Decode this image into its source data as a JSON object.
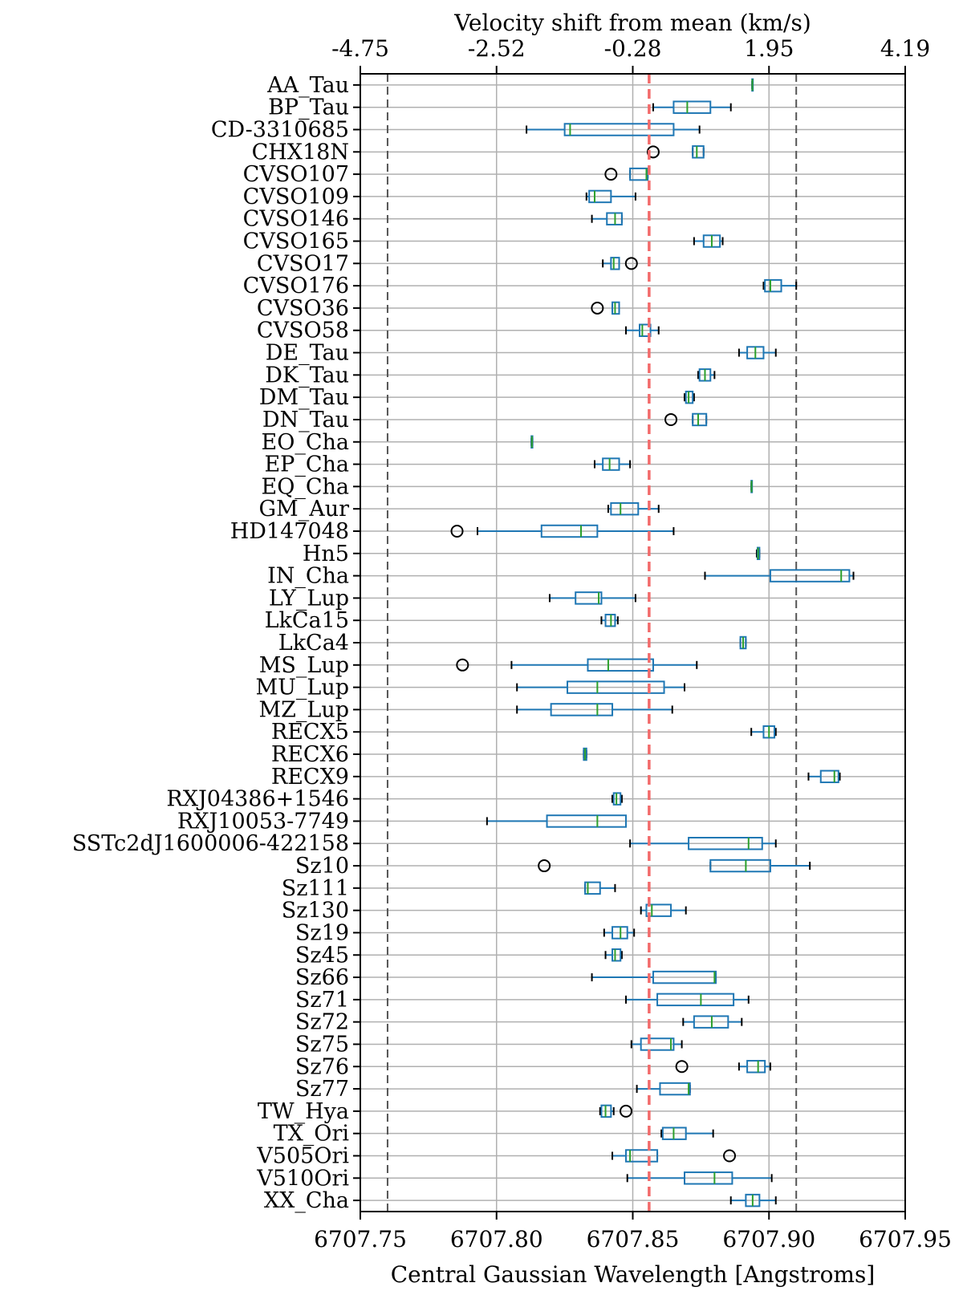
{
  "chart_data": {
    "type": "box",
    "orientation": "horizontal",
    "xlabel": "Central Gaussian Wavelength [Angstroms]",
    "top_xlabel": "Velocity shift from mean (km/s)",
    "xlim": [
      6707.75,
      6707.95
    ],
    "x_ticks": [
      "6707.75",
      "6707.80",
      "6707.85",
      "6707.90",
      "6707.95"
    ],
    "x_tick_values": [
      6707.75,
      6707.8,
      6707.85,
      6707.9,
      6707.95
    ],
    "top_ticks": [
      "-4.75",
      "-2.52",
      "-0.28",
      "1.95",
      "4.19"
    ],
    "mean_line": 6707.856,
    "dashed_lines": [
      6707.76,
      6707.91
    ],
    "grid": true,
    "colors": {
      "box": "#1f77b4",
      "median": "#2ca02c",
      "mean_line": "#f26a6a",
      "dashed": "#555555",
      "grid": "#b0b0b0"
    },
    "boxes": [
      {
        "name": "AA_Tau",
        "whislo": 6707.8938,
        "q1": 6707.8938,
        "med": 6707.8939,
        "q3": 6707.894,
        "whishi": 6707.894,
        "fliers": []
      },
      {
        "name": "BP_Tau",
        "whislo": 6707.8575,
        "q1": 6707.865,
        "med": 6707.87,
        "q3": 6707.8785,
        "whishi": 6707.886,
        "fliers": []
      },
      {
        "name": "CD-3310685",
        "whislo": 6707.811,
        "q1": 6707.825,
        "med": 6707.827,
        "q3": 6707.865,
        "whishi": 6707.8745,
        "fliers": []
      },
      {
        "name": "CHX18N",
        "whislo": 6707.872,
        "q1": 6707.872,
        "med": 6707.8735,
        "q3": 6707.876,
        "whishi": 6707.876,
        "fliers": [
          6707.8575
        ]
      },
      {
        "name": "CVSO107",
        "whislo": 6707.849,
        "q1": 6707.849,
        "med": 6707.855,
        "q3": 6707.8555,
        "whishi": 6707.8555,
        "fliers": [
          6707.842
        ]
      },
      {
        "name": "CVSO109",
        "whislo": 6707.833,
        "q1": 6707.834,
        "med": 6707.836,
        "q3": 6707.842,
        "whishi": 6707.851,
        "fliers": []
      },
      {
        "name": "CVSO146",
        "whislo": 6707.835,
        "q1": 6707.8405,
        "med": 6707.8435,
        "q3": 6707.846,
        "whishi": 6707.846,
        "fliers": []
      },
      {
        "name": "CVSO165",
        "whislo": 6707.8725,
        "q1": 6707.876,
        "med": 6707.879,
        "q3": 6707.882,
        "whishi": 6707.883,
        "fliers": []
      },
      {
        "name": "CVSO17",
        "whislo": 6707.839,
        "q1": 6707.842,
        "med": 6707.843,
        "q3": 6707.845,
        "whishi": 6707.845,
        "fliers": [
          6707.8495
        ]
      },
      {
        "name": "CVSO176",
        "whislo": 6707.898,
        "q1": 6707.8985,
        "med": 6707.9005,
        "q3": 6707.9045,
        "whishi": 6707.91,
        "fliers": []
      },
      {
        "name": "CVSO36",
        "whislo": 6707.8425,
        "q1": 6707.8425,
        "med": 6707.8435,
        "q3": 6707.845,
        "whishi": 6707.845,
        "fliers": [
          6707.837
        ]
      },
      {
        "name": "CVSO58",
        "whislo": 6707.8475,
        "q1": 6707.8525,
        "med": 6707.8535,
        "q3": 6707.8565,
        "whishi": 6707.8595,
        "fliers": []
      },
      {
        "name": "DE_Tau",
        "whislo": 6707.889,
        "q1": 6707.892,
        "med": 6707.895,
        "q3": 6707.898,
        "whishi": 6707.9025,
        "fliers": []
      },
      {
        "name": "DK_Tau",
        "whislo": 6707.874,
        "q1": 6707.8745,
        "med": 6707.8765,
        "q3": 6707.8785,
        "whishi": 6707.88,
        "fliers": []
      },
      {
        "name": "DM_Tau",
        "whislo": 6707.869,
        "q1": 6707.8695,
        "med": 6707.8705,
        "q3": 6707.872,
        "whishi": 6707.8725,
        "fliers": []
      },
      {
        "name": "DN_Tau",
        "whislo": 6707.872,
        "q1": 6707.872,
        "med": 6707.874,
        "q3": 6707.877,
        "whishi": 6707.877,
        "fliers": [
          6707.864
        ]
      },
      {
        "name": "EO_Cha",
        "whislo": 6707.8128,
        "q1": 6707.8128,
        "med": 6707.813,
        "q3": 6707.8132,
        "whishi": 6707.8132,
        "fliers": []
      },
      {
        "name": "EP_Cha",
        "whislo": 6707.836,
        "q1": 6707.839,
        "med": 6707.8415,
        "q3": 6707.845,
        "whishi": 6707.849,
        "fliers": []
      },
      {
        "name": "EQ_Cha",
        "whislo": 6707.8935,
        "q1": 6707.8935,
        "med": 6707.8936,
        "q3": 6707.8937,
        "whishi": 6707.8937,
        "fliers": []
      },
      {
        "name": "GM_Aur",
        "whislo": 6707.841,
        "q1": 6707.842,
        "med": 6707.8455,
        "q3": 6707.852,
        "whishi": 6707.8595,
        "fliers": []
      },
      {
        "name": "HD147048",
        "whislo": 6707.793,
        "q1": 6707.8165,
        "med": 6707.831,
        "q3": 6707.837,
        "whishi": 6707.865,
        "fliers": [
          6707.7855
        ]
      },
      {
        "name": "Hn5",
        "whislo": 6707.8955,
        "q1": 6707.8958,
        "med": 6707.896,
        "q3": 6707.8965,
        "whishi": 6707.8965,
        "fliers": []
      },
      {
        "name": "IN_Cha",
        "whislo": 6707.8765,
        "q1": 6707.9005,
        "med": 6707.9265,
        "q3": 6707.9295,
        "whishi": 6707.931,
        "fliers": []
      },
      {
        "name": "LY_Lup",
        "whislo": 6707.8195,
        "q1": 6707.829,
        "med": 6707.8375,
        "q3": 6707.8385,
        "whishi": 6707.851,
        "fliers": []
      },
      {
        "name": "LkCa15",
        "whislo": 6707.8385,
        "q1": 6707.84,
        "med": 6707.842,
        "q3": 6707.8435,
        "whishi": 6707.8445,
        "fliers": []
      },
      {
        "name": "LkCa4",
        "whislo": 6707.8895,
        "q1": 6707.8895,
        "med": 6707.8905,
        "q3": 6707.8915,
        "whishi": 6707.8915,
        "fliers": []
      },
      {
        "name": "MS_Lup",
        "whislo": 6707.8055,
        "q1": 6707.8335,
        "med": 6707.841,
        "q3": 6707.8575,
        "whishi": 6707.8735,
        "fliers": [
          6707.7875
        ]
      },
      {
        "name": "MU_Lup",
        "whislo": 6707.8075,
        "q1": 6707.826,
        "med": 6707.837,
        "q3": 6707.8615,
        "whishi": 6707.869,
        "fliers": []
      },
      {
        "name": "MZ_Lup",
        "whislo": 6707.8075,
        "q1": 6707.82,
        "med": 6707.837,
        "q3": 6707.8425,
        "whishi": 6707.8645,
        "fliers": []
      },
      {
        "name": "RECX5",
        "whislo": 6707.8935,
        "q1": 6707.898,
        "med": 6707.9,
        "q3": 6707.902,
        "whishi": 6707.9025,
        "fliers": []
      },
      {
        "name": "RECX6",
        "whislo": 6707.832,
        "q1": 6707.832,
        "med": 6707.8325,
        "q3": 6707.833,
        "whishi": 6707.833,
        "fliers": []
      },
      {
        "name": "RECX9",
        "whislo": 6707.9145,
        "q1": 6707.919,
        "med": 6707.924,
        "q3": 6707.9255,
        "whishi": 6707.926,
        "fliers": []
      },
      {
        "name": "RXJ04386+1546",
        "whislo": 6707.8425,
        "q1": 6707.843,
        "med": 6707.844,
        "q3": 6707.8455,
        "whishi": 6707.846,
        "fliers": []
      },
      {
        "name": "RXJ10053-7749",
        "whislo": 6707.7965,
        "q1": 6707.8185,
        "med": 6707.837,
        "q3": 6707.8475,
        "whishi": 6707.8475,
        "fliers": []
      },
      {
        "name": "SSTc2dJ1600006-422158",
        "whislo": 6707.849,
        "q1": 6707.8705,
        "med": 6707.8925,
        "q3": 6707.8975,
        "whishi": 6707.9025,
        "fliers": []
      },
      {
        "name": "Sz10",
        "whislo": 6707.8785,
        "q1": 6707.8785,
        "med": 6707.8915,
        "q3": 6707.9005,
        "whishi": 6707.915,
        "fliers": [
          6707.8175
        ]
      },
      {
        "name": "Sz111",
        "whislo": 6707.8325,
        "q1": 6707.8325,
        "med": 6707.8335,
        "q3": 6707.838,
        "whishi": 6707.8435,
        "fliers": []
      },
      {
        "name": "Sz130",
        "whislo": 6707.853,
        "q1": 6707.855,
        "med": 6707.857,
        "q3": 6707.864,
        "whishi": 6707.8695,
        "fliers": []
      },
      {
        "name": "Sz19",
        "whislo": 6707.8395,
        "q1": 6707.8425,
        "med": 6707.8455,
        "q3": 6707.848,
        "whishi": 6707.8505,
        "fliers": []
      },
      {
        "name": "Sz45",
        "whislo": 6707.84,
        "q1": 6707.8425,
        "med": 6707.8435,
        "q3": 6707.8455,
        "whishi": 6707.846,
        "fliers": []
      },
      {
        "name": "Sz66",
        "whislo": 6707.835,
        "q1": 6707.8575,
        "med": 6707.88,
        "q3": 6707.8805,
        "whishi": 6707.8805,
        "fliers": []
      },
      {
        "name": "Sz71",
        "whislo": 6707.8475,
        "q1": 6707.859,
        "med": 6707.875,
        "q3": 6707.887,
        "whishi": 6707.8925,
        "fliers": []
      },
      {
        "name": "Sz72",
        "whislo": 6707.8685,
        "q1": 6707.8725,
        "med": 6707.879,
        "q3": 6707.885,
        "whishi": 6707.89,
        "fliers": []
      },
      {
        "name": "Sz75",
        "whislo": 6707.8495,
        "q1": 6707.853,
        "med": 6707.864,
        "q3": 6707.865,
        "whishi": 6707.868,
        "fliers": []
      },
      {
        "name": "Sz76",
        "whislo": 6707.889,
        "q1": 6707.892,
        "med": 6707.896,
        "q3": 6707.8985,
        "whishi": 6707.9005,
        "fliers": [
          6707.868
        ]
      },
      {
        "name": "Sz77",
        "whislo": 6707.8515,
        "q1": 6707.86,
        "med": 6707.8705,
        "q3": 6707.871,
        "whishi": 6707.871,
        "fliers": []
      },
      {
        "name": "TW_Hya",
        "whislo": 6707.838,
        "q1": 6707.8385,
        "med": 6707.84,
        "q3": 6707.842,
        "whishi": 6707.843,
        "fliers": [
          6707.8475
        ]
      },
      {
        "name": "TX_Ori",
        "whislo": 6707.8605,
        "q1": 6707.861,
        "med": 6707.865,
        "q3": 6707.8695,
        "whishi": 6707.8795,
        "fliers": []
      },
      {
        "name": "V505Ori",
        "whislo": 6707.8425,
        "q1": 6707.8475,
        "med": 6707.849,
        "q3": 6707.859,
        "whishi": 6707.859,
        "fliers": [
          6707.8855
        ]
      },
      {
        "name": "V510Ori",
        "whislo": 6707.848,
        "q1": 6707.869,
        "med": 6707.88,
        "q3": 6707.8865,
        "whishi": 6707.901,
        "fliers": []
      },
      {
        "name": "XX_Cha",
        "whislo": 6707.886,
        "q1": 6707.8915,
        "med": 6707.894,
        "q3": 6707.8965,
        "whishi": 6707.9025,
        "fliers": []
      }
    ]
  }
}
